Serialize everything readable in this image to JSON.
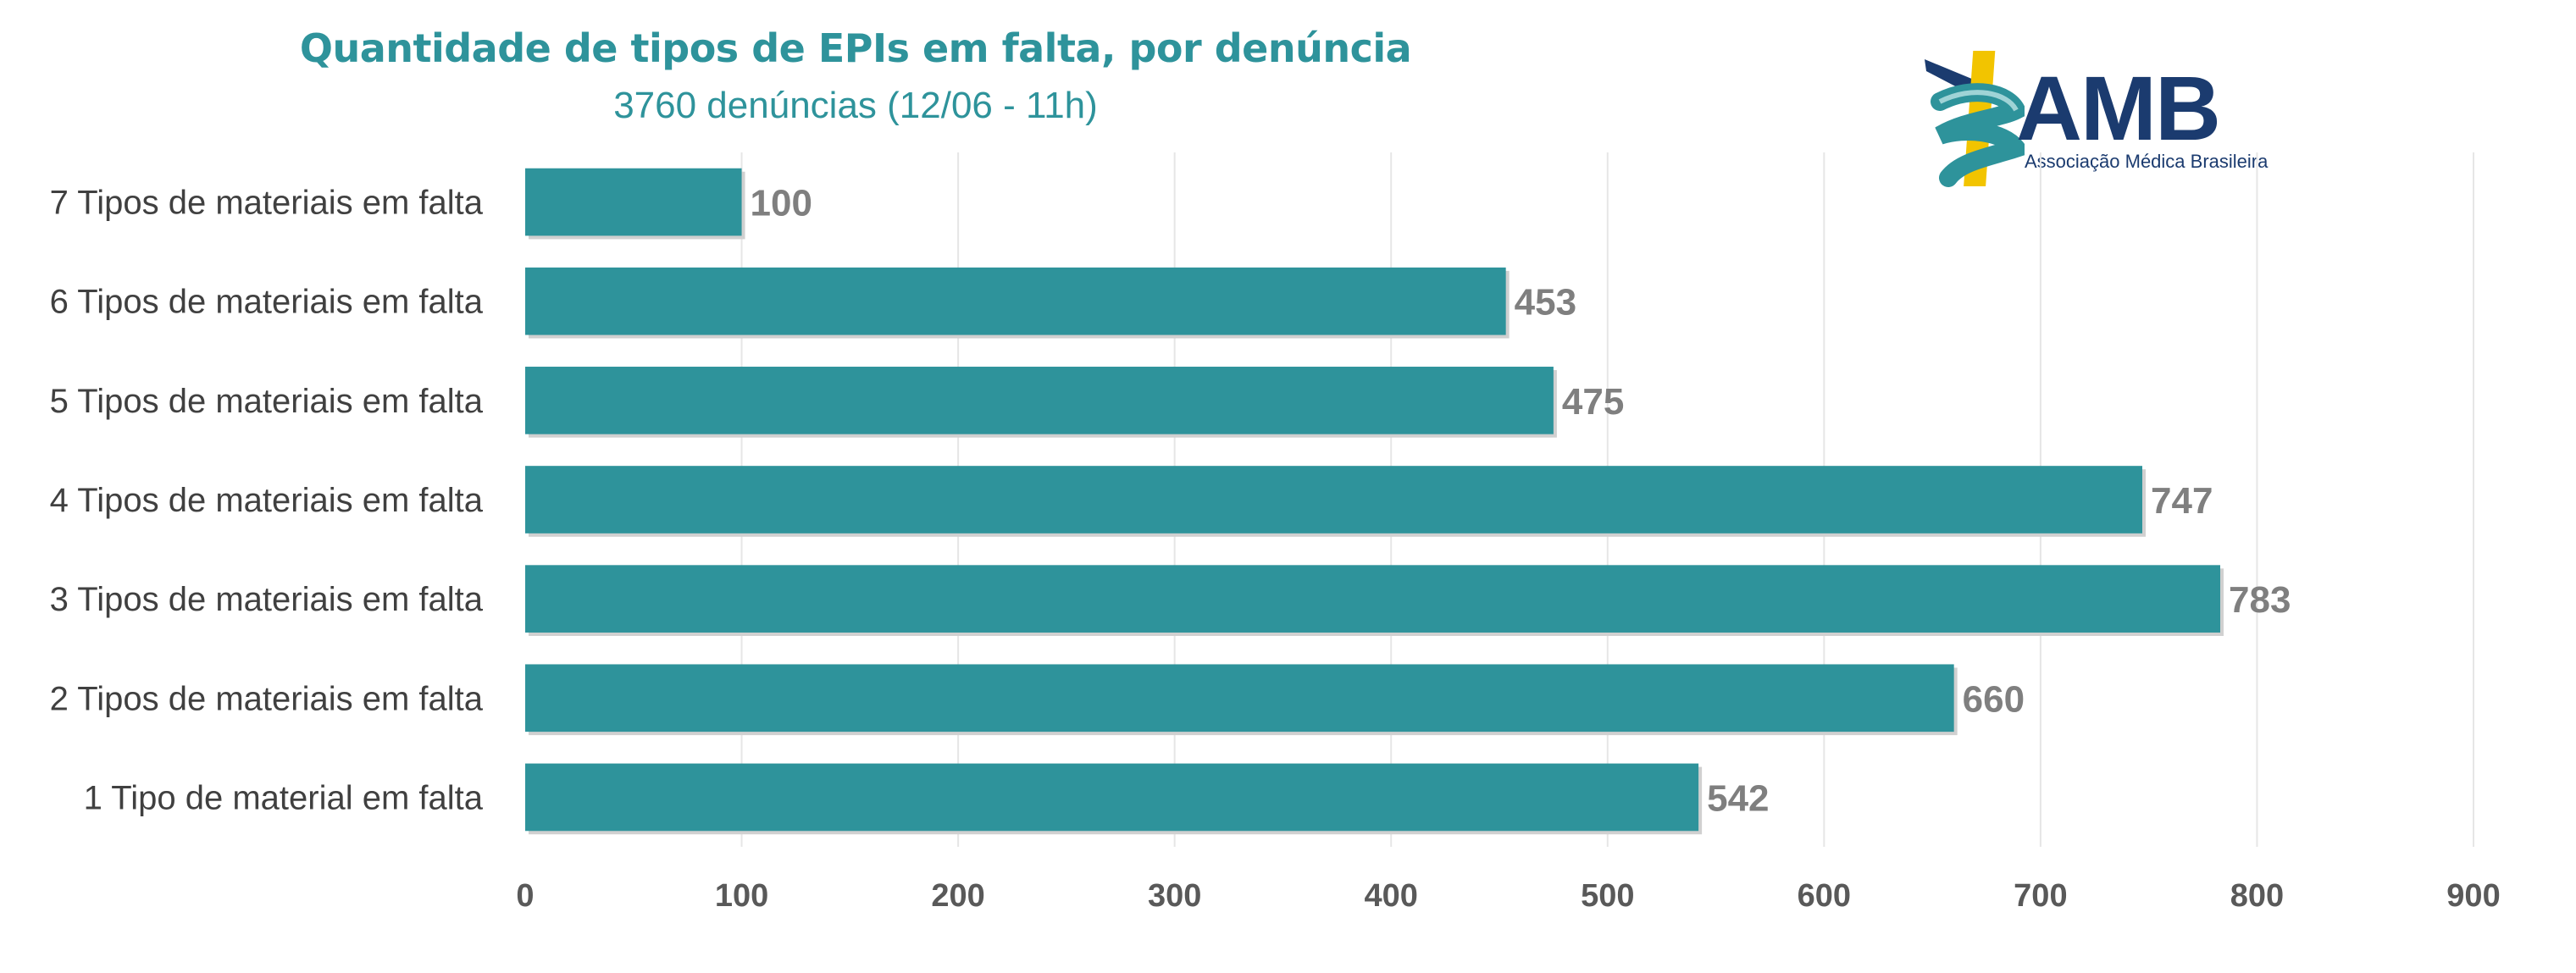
{
  "chart_data": {
    "type": "bar",
    "orientation": "horizontal",
    "title": "Quantidade de tipos de EPIs em falta, por denúncia",
    "subtitle": "3760 denúncias (12/06 - 11h)",
    "categories": [
      "7 Tipos de materiais em falta",
      "6 Tipos de materiais em falta",
      "5 Tipos de materiais em falta",
      "4 Tipos de materiais em falta",
      "3 Tipos de materiais em falta",
      "2 Tipos de materiais em falta",
      "1 Tipo de material em falta"
    ],
    "values": [
      100,
      453,
      475,
      747,
      783,
      660,
      542
    ],
    "xlim": [
      0,
      900
    ],
    "xticks": [
      0,
      100,
      200,
      300,
      400,
      500,
      600,
      700,
      800,
      900
    ],
    "xlabel": "",
    "ylabel": "",
    "grid": "vertical",
    "legend": "none",
    "data_labels": true,
    "colors": {
      "bar": "#2e939b",
      "title": "#2e939b",
      "value_label": "#7f7f7f",
      "grid": "#e6e6e6"
    }
  },
  "logo": {
    "text": "AMB",
    "subtitle": "Associação Médica Brasileira",
    "colors": {
      "text": "#1b3b6f",
      "emblem_yellow": "#f2c400",
      "emblem_teal": "#2e939b"
    }
  }
}
